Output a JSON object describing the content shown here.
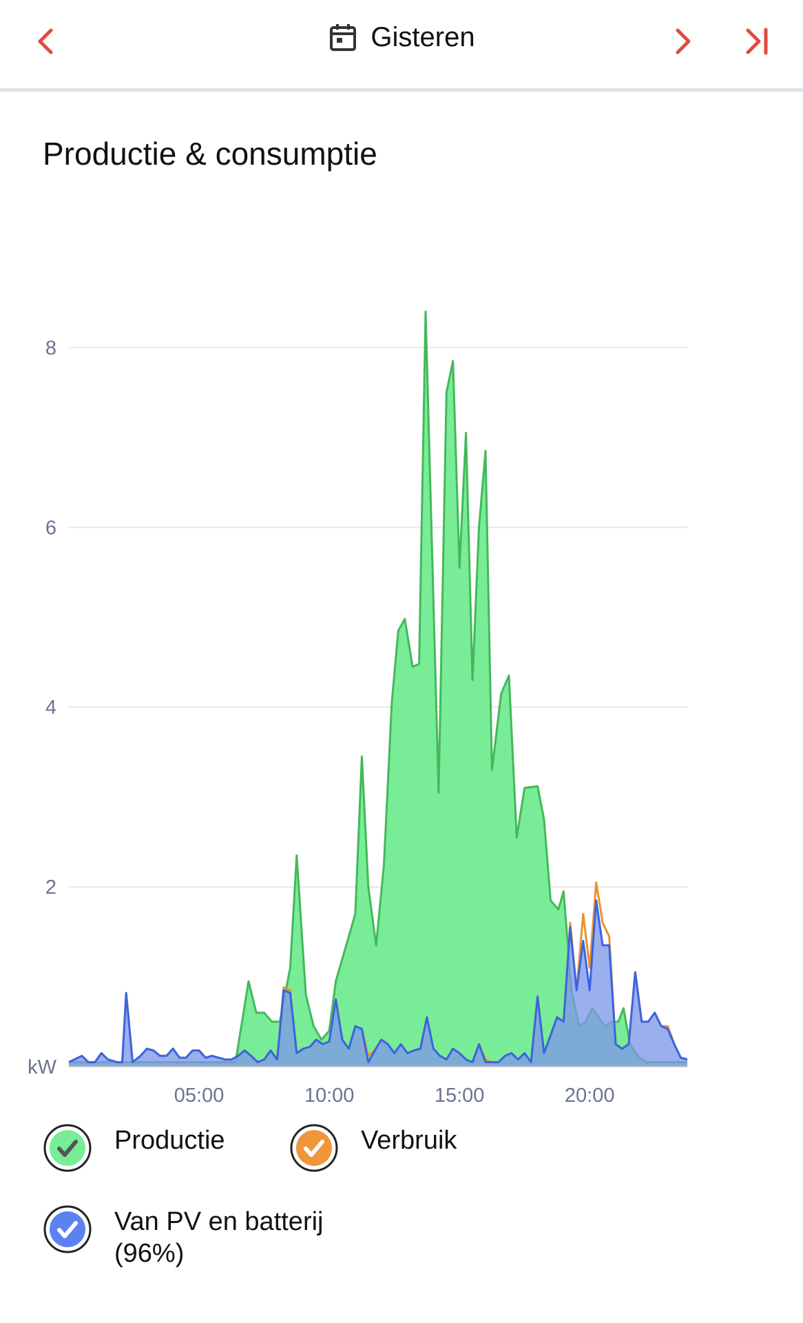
{
  "header": {
    "date_label": "Gisteren",
    "accent_color": "#e04b3f"
  },
  "section": {
    "title": "Productie & consumptie"
  },
  "chart_data": {
    "type": "area",
    "unit": "kW",
    "x_ticks": [
      "05:00",
      "10:00",
      "15:00",
      "20:00"
    ],
    "x_tick_hours": [
      5,
      10,
      15,
      20
    ],
    "xlim": [
      0,
      23.75
    ],
    "ylim": [
      0,
      8.8
    ],
    "y_ticks": [
      2,
      4,
      6,
      8
    ],
    "grid": true,
    "legend_position": "bottom",
    "series": [
      {
        "name": "Productie",
        "color": "#44b85a",
        "fill": "#79ec97",
        "points": [
          [
            0,
            0.05
          ],
          [
            6.4,
            0.05
          ],
          [
            6.9,
            0.95
          ],
          [
            7.2,
            0.6
          ],
          [
            7.5,
            0.6
          ],
          [
            7.8,
            0.5
          ],
          [
            8.1,
            0.5
          ],
          [
            8.5,
            1.1
          ],
          [
            8.75,
            2.35
          ],
          [
            9.1,
            0.8
          ],
          [
            9.4,
            0.45
          ],
          [
            9.7,
            0.3
          ],
          [
            10.0,
            0.4
          ],
          [
            10.25,
            0.95
          ],
          [
            10.6,
            1.3
          ],
          [
            11.0,
            1.7
          ],
          [
            11.25,
            3.45
          ],
          [
            11.5,
            2.0
          ],
          [
            11.8,
            1.35
          ],
          [
            12.1,
            2.25
          ],
          [
            12.4,
            4.05
          ],
          [
            12.65,
            4.85
          ],
          [
            12.9,
            4.98
          ],
          [
            13.2,
            4.45
          ],
          [
            13.45,
            4.48
          ],
          [
            13.7,
            8.4
          ],
          [
            14.2,
            3.05
          ],
          [
            14.5,
            7.5
          ],
          [
            14.75,
            7.85
          ],
          [
            15.0,
            5.55
          ],
          [
            15.25,
            7.05
          ],
          [
            15.5,
            4.3
          ],
          [
            15.75,
            6.0
          ],
          [
            16.0,
            6.85
          ],
          [
            16.25,
            3.3
          ],
          [
            16.6,
            4.15
          ],
          [
            16.9,
            4.35
          ],
          [
            17.2,
            2.55
          ],
          [
            17.5,
            3.1
          ],
          [
            18.0,
            3.12
          ],
          [
            18.25,
            2.75
          ],
          [
            18.5,
            1.85
          ],
          [
            18.8,
            1.75
          ],
          [
            19.0,
            1.95
          ],
          [
            19.3,
            0.85
          ],
          [
            19.6,
            0.45
          ],
          [
            19.85,
            0.5
          ],
          [
            20.1,
            0.65
          ],
          [
            20.35,
            0.55
          ],
          [
            20.6,
            0.45
          ],
          [
            20.85,
            0.5
          ],
          [
            21.1,
            0.5
          ],
          [
            21.3,
            0.65
          ],
          [
            21.55,
            0.25
          ],
          [
            21.9,
            0.1
          ],
          [
            22.2,
            0.05
          ],
          [
            23.75,
            0.05
          ]
        ]
      },
      {
        "name": "Verbruik",
        "color": "#e8922e",
        "fill": "#e8922e",
        "points": [
          [
            0,
            0.05
          ],
          [
            0.5,
            0.12
          ],
          [
            0.75,
            0.05
          ],
          [
            1.0,
            0.05
          ],
          [
            1.25,
            0.15
          ],
          [
            1.5,
            0.08
          ],
          [
            1.85,
            0.05
          ],
          [
            2.05,
            0.05
          ],
          [
            2.2,
            0.82
          ],
          [
            2.45,
            0.05
          ],
          [
            2.75,
            0.12
          ],
          [
            3.0,
            0.2
          ],
          [
            3.25,
            0.18
          ],
          [
            3.5,
            0.12
          ],
          [
            3.75,
            0.12
          ],
          [
            4.0,
            0.2
          ],
          [
            4.25,
            0.1
          ],
          [
            4.5,
            0.1
          ],
          [
            4.75,
            0.18
          ],
          [
            5.0,
            0.18
          ],
          [
            5.25,
            0.1
          ],
          [
            5.5,
            0.12
          ],
          [
            5.75,
            0.1
          ],
          [
            6.0,
            0.08
          ],
          [
            6.25,
            0.08
          ],
          [
            6.5,
            0.12
          ],
          [
            6.75,
            0.18
          ],
          [
            7.0,
            0.12
          ],
          [
            7.25,
            0.05
          ],
          [
            7.5,
            0.08
          ],
          [
            7.75,
            0.18
          ],
          [
            8.0,
            0.08
          ],
          [
            8.25,
            0.88
          ],
          [
            8.5,
            0.85
          ],
          [
            8.75,
            0.15
          ],
          [
            9.0,
            0.2
          ],
          [
            9.25,
            0.22
          ],
          [
            9.5,
            0.3
          ],
          [
            9.75,
            0.25
          ],
          [
            10.0,
            0.28
          ],
          [
            10.25,
            0.75
          ],
          [
            10.5,
            0.3
          ],
          [
            10.75,
            0.2
          ],
          [
            11.0,
            0.45
          ],
          [
            11.25,
            0.42
          ],
          [
            11.5,
            0.12
          ],
          [
            11.75,
            0.18
          ],
          [
            12.0,
            0.3
          ],
          [
            12.25,
            0.25
          ],
          [
            12.5,
            0.15
          ],
          [
            12.75,
            0.25
          ],
          [
            13.0,
            0.15
          ],
          [
            13.25,
            0.18
          ],
          [
            13.5,
            0.2
          ],
          [
            13.75,
            0.55
          ],
          [
            14.0,
            0.2
          ],
          [
            14.25,
            0.12
          ],
          [
            14.5,
            0.08
          ],
          [
            14.75,
            0.2
          ],
          [
            15.0,
            0.15
          ],
          [
            15.25,
            0.08
          ],
          [
            15.5,
            0.05
          ],
          [
            15.75,
            0.25
          ],
          [
            16.0,
            0.08
          ],
          [
            16.25,
            0.05
          ],
          [
            16.5,
            0.05
          ],
          [
            16.75,
            0.12
          ],
          [
            17.0,
            0.15
          ],
          [
            17.25,
            0.08
          ],
          [
            17.5,
            0.15
          ],
          [
            17.75,
            0.05
          ],
          [
            18.0,
            0.78
          ],
          [
            18.25,
            0.15
          ],
          [
            18.5,
            0.35
          ],
          [
            18.75,
            0.55
          ],
          [
            19.0,
            0.5
          ],
          [
            19.25,
            1.6
          ],
          [
            19.5,
            0.85
          ],
          [
            19.75,
            1.7
          ],
          [
            20.0,
            1.1
          ],
          [
            20.25,
            2.05
          ],
          [
            20.5,
            1.6
          ],
          [
            20.75,
            1.45
          ],
          [
            21.0,
            0.25
          ],
          [
            21.25,
            0.2
          ],
          [
            21.5,
            0.25
          ],
          [
            21.75,
            1.05
          ],
          [
            22.0,
            0.5
          ],
          [
            22.25,
            0.5
          ],
          [
            22.5,
            0.6
          ],
          [
            22.75,
            0.45
          ],
          [
            23.0,
            0.45
          ],
          [
            23.25,
            0.25
          ],
          [
            23.5,
            0.1
          ],
          [
            23.75,
            0.08
          ]
        ]
      },
      {
        "name": "Van PV en batterij",
        "color": "#3a64e0",
        "fill": "#7e98e8",
        "points": [
          [
            0,
            0.05
          ],
          [
            0.5,
            0.12
          ],
          [
            0.75,
            0.05
          ],
          [
            1.0,
            0.05
          ],
          [
            1.25,
            0.15
          ],
          [
            1.5,
            0.08
          ],
          [
            1.85,
            0.05
          ],
          [
            2.05,
            0.05
          ],
          [
            2.2,
            0.82
          ],
          [
            2.45,
            0.05
          ],
          [
            2.75,
            0.12
          ],
          [
            3.0,
            0.2
          ],
          [
            3.25,
            0.18
          ],
          [
            3.5,
            0.12
          ],
          [
            3.75,
            0.12
          ],
          [
            4.0,
            0.2
          ],
          [
            4.25,
            0.1
          ],
          [
            4.5,
            0.1
          ],
          [
            4.75,
            0.18
          ],
          [
            5.0,
            0.18
          ],
          [
            5.25,
            0.1
          ],
          [
            5.5,
            0.12
          ],
          [
            5.75,
            0.1
          ],
          [
            6.0,
            0.08
          ],
          [
            6.25,
            0.08
          ],
          [
            6.5,
            0.12
          ],
          [
            6.75,
            0.18
          ],
          [
            7.0,
            0.12
          ],
          [
            7.25,
            0.05
          ],
          [
            7.5,
            0.08
          ],
          [
            7.75,
            0.18
          ],
          [
            8.0,
            0.08
          ],
          [
            8.25,
            0.85
          ],
          [
            8.5,
            0.82
          ],
          [
            8.75,
            0.15
          ],
          [
            9.0,
            0.2
          ],
          [
            9.25,
            0.22
          ],
          [
            9.5,
            0.3
          ],
          [
            9.75,
            0.25
          ],
          [
            10.0,
            0.28
          ],
          [
            10.25,
            0.75
          ],
          [
            10.5,
            0.3
          ],
          [
            10.75,
            0.2
          ],
          [
            11.0,
            0.45
          ],
          [
            11.25,
            0.42
          ],
          [
            11.5,
            0.05
          ],
          [
            11.75,
            0.18
          ],
          [
            12.0,
            0.3
          ],
          [
            12.25,
            0.25
          ],
          [
            12.5,
            0.15
          ],
          [
            12.75,
            0.25
          ],
          [
            13.0,
            0.15
          ],
          [
            13.25,
            0.18
          ],
          [
            13.5,
            0.2
          ],
          [
            13.75,
            0.55
          ],
          [
            14.0,
            0.2
          ],
          [
            14.25,
            0.12
          ],
          [
            14.5,
            0.08
          ],
          [
            14.75,
            0.2
          ],
          [
            15.0,
            0.15
          ],
          [
            15.25,
            0.08
          ],
          [
            15.5,
            0.05
          ],
          [
            15.75,
            0.25
          ],
          [
            16.0,
            0.05
          ],
          [
            16.25,
            0.05
          ],
          [
            16.5,
            0.05
          ],
          [
            16.75,
            0.12
          ],
          [
            17.0,
            0.15
          ],
          [
            17.25,
            0.08
          ],
          [
            17.5,
            0.15
          ],
          [
            17.75,
            0.05
          ],
          [
            18.0,
            0.78
          ],
          [
            18.25,
            0.15
          ],
          [
            18.5,
            0.35
          ],
          [
            18.75,
            0.55
          ],
          [
            19.0,
            0.5
          ],
          [
            19.25,
            1.55
          ],
          [
            19.5,
            0.85
          ],
          [
            19.75,
            1.4
          ],
          [
            20.0,
            0.85
          ],
          [
            20.25,
            1.85
          ],
          [
            20.5,
            1.35
          ],
          [
            20.75,
            1.35
          ],
          [
            21.0,
            0.25
          ],
          [
            21.25,
            0.2
          ],
          [
            21.5,
            0.25
          ],
          [
            21.75,
            1.05
          ],
          [
            22.0,
            0.5
          ],
          [
            22.25,
            0.5
          ],
          [
            22.5,
            0.6
          ],
          [
            22.75,
            0.45
          ],
          [
            23.0,
            0.42
          ],
          [
            23.25,
            0.25
          ],
          [
            23.5,
            0.1
          ],
          [
            23.75,
            0.08
          ]
        ]
      }
    ]
  },
  "legend": {
    "items": [
      {
        "label": "Productie",
        "color": "#79ec97",
        "check_color": "#555555",
        "checked": true
      },
      {
        "label": "Verbruik",
        "color": "#f0963a",
        "check_color": "#ffffff",
        "checked": true
      },
      {
        "label": "Van PV en batterij",
        "sublabel": "(96%)",
        "color": "#5b83ef",
        "check_color": "#ffffff",
        "checked": true
      }
    ]
  }
}
